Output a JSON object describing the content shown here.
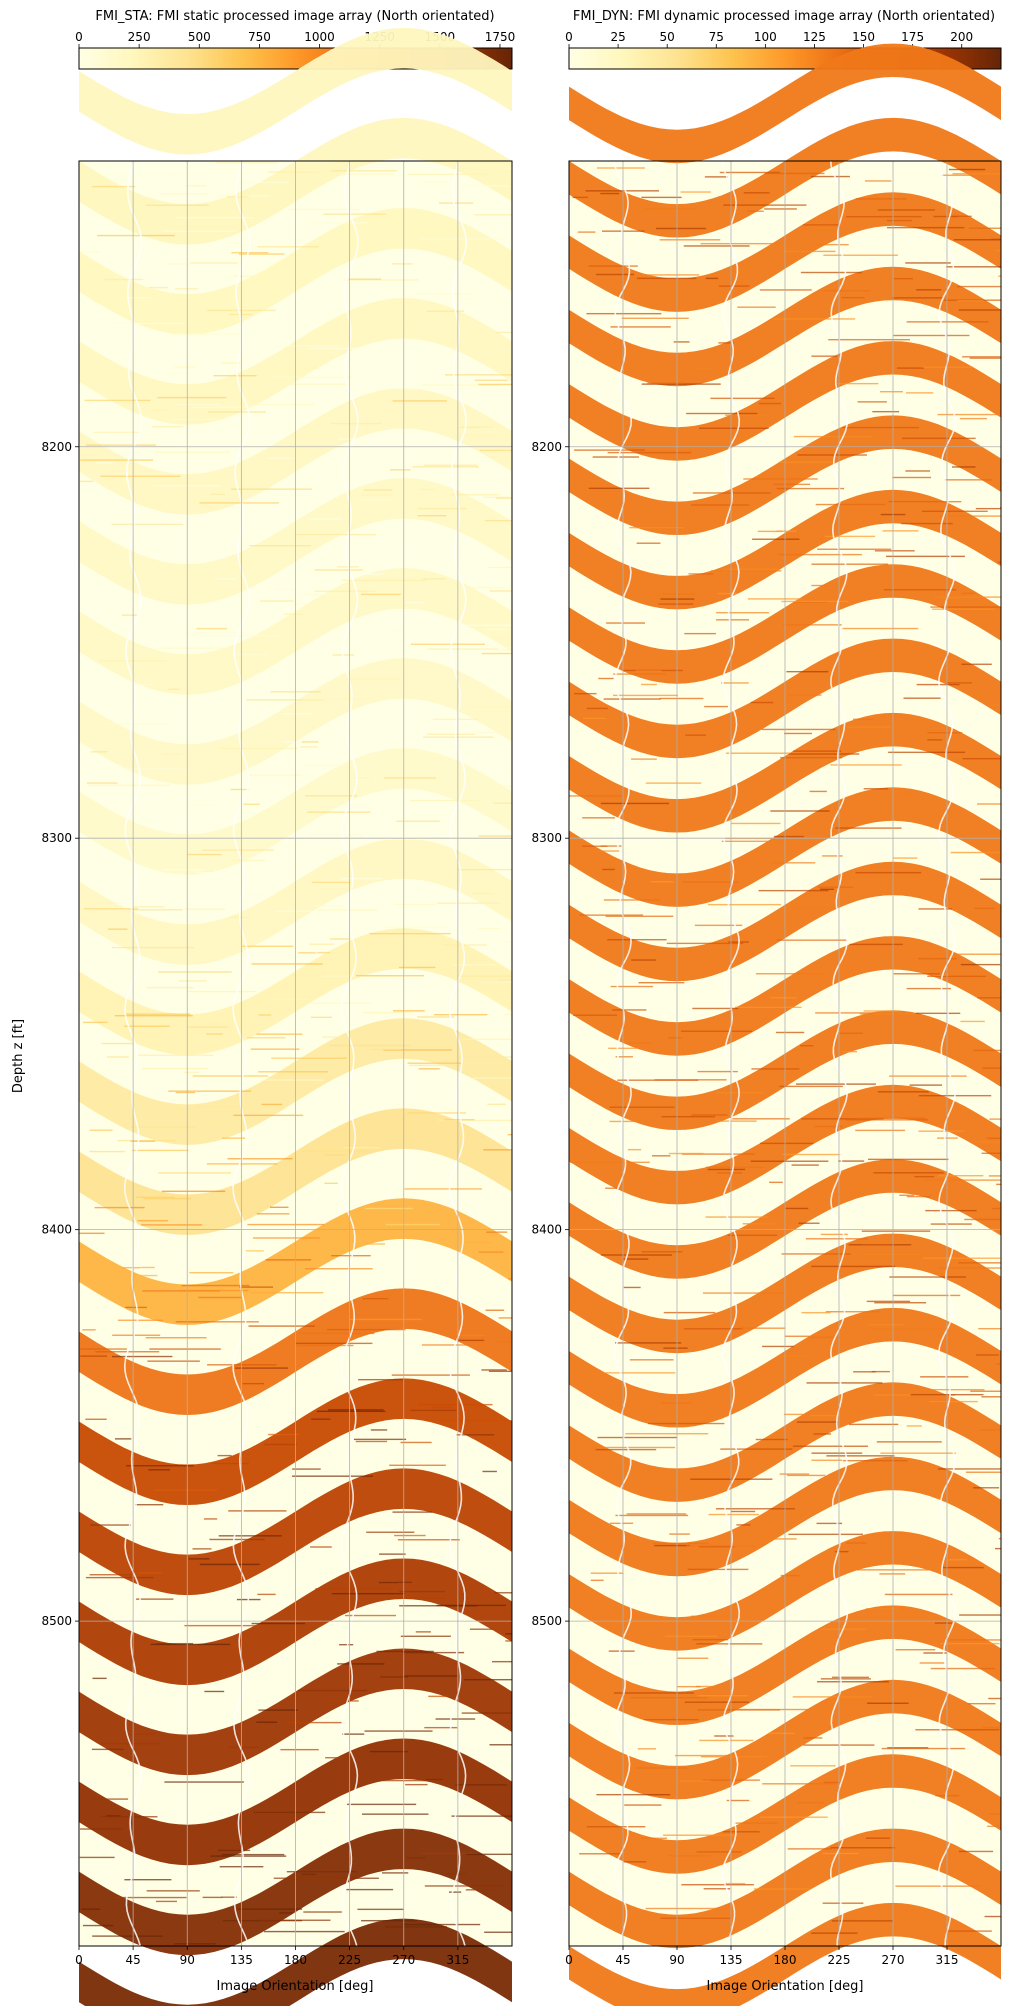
{
  "chart_data": [
    {
      "type": "heatmap",
      "title": "FMI_STA: FMI static processed image array (North orientated)",
      "xlabel": "Image Orientation [deg]",
      "ylabel": "Depth z [ft]",
      "x_ticks": [
        0,
        45,
        90,
        135,
        180,
        225,
        270,
        315
      ],
      "xlim": [
        0,
        360
      ],
      "y_ticks": [
        8200,
        8300,
        8400,
        8500
      ],
      "ylim": [
        8127,
        8583
      ],
      "grid": true,
      "colormap": "YlOrBr",
      "colorbar": {
        "orientation": "horizontal",
        "placement": "top",
        "ticks": [
          0,
          250,
          500,
          750,
          1000,
          1250,
          1500,
          1750
        ],
        "range": [
          0,
          1800
        ]
      },
      "intensity_profile": {
        "depth": [
          8127,
          8300,
          8380,
          8420,
          8440,
          8583
        ],
        "level": [
          0.12,
          0.08,
          0.25,
          0.55,
          0.75,
          0.95
        ]
      },
      "sinusoid_period_ft": 23,
      "sinusoid_amplitude_ft": 11
    },
    {
      "type": "heatmap",
      "title": "FMI_DYN: FMI dynamic processed image array (North orientated)",
      "xlabel": "Image Orientation [deg]",
      "ylabel": "",
      "x_ticks": [
        0,
        45,
        90,
        135,
        180,
        225,
        270,
        315
      ],
      "xlim": [
        0,
        360
      ],
      "y_ticks": [
        8200,
        8300,
        8400,
        8500
      ],
      "ylim": [
        8127,
        8583
      ],
      "grid": true,
      "colormap": "YlOrBr",
      "colorbar": {
        "orientation": "horizontal",
        "placement": "top",
        "ticks": [
          0,
          25,
          50,
          75,
          100,
          125,
          150,
          175,
          200
        ],
        "range": [
          0,
          220
        ]
      },
      "intensity_profile": {
        "depth": [
          8127,
          8583
        ],
        "level": [
          0.6,
          0.6
        ]
      },
      "sinusoid_period_ft": 19,
      "sinusoid_amplitude_ft": 11
    }
  ]
}
